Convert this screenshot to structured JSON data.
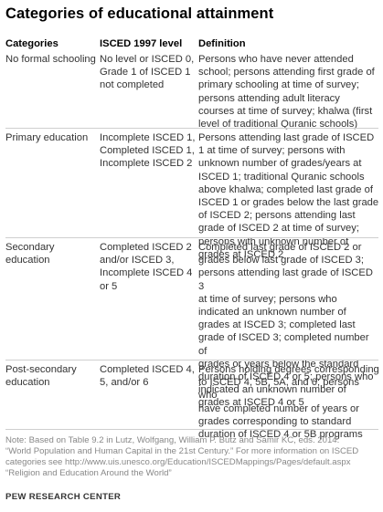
{
  "title": "Categories of educational attainment",
  "headers": {
    "category": "Categories",
    "isced": "ISCED 1997 level",
    "definition": "Definition"
  },
  "rows": [
    {
      "category": [
        "No formal schooling"
      ],
      "isced": [
        "No level or ISCED 0,",
        "Grade 1 of ISCED 1",
        "not completed"
      ],
      "definition": [
        "Persons who have never attended",
        "school; persons attending first grade of",
        "primary schooling at time of survey;",
        "persons attending adult literacy",
        "courses at time of survey; khalwa (first",
        "level of traditional Quranic schools)"
      ]
    },
    {
      "category": [
        "Primary education"
      ],
      "isced": [
        "Incomplete ISCED 1,",
        "Completed ISCED 1,",
        "Incomplete ISCED 2"
      ],
      "definition": [
        "Persons attending last grade of ISCED",
        "1 at time of survey; persons with",
        "unknown number of grades/years at",
        "ISCED 1; traditional Quranic schools",
        "above khalwa; completed last grade of",
        "ISCED 1 or grades below the last grade",
        "of ISCED 2; persons attending last",
        "grade of ISCED 2 at time of survey;",
        "persons with unknown number of",
        "grades at ISCED 2"
      ]
    },
    {
      "category": [
        "Secondary",
        "education"
      ],
      "isced": [
        "Completed ISCED 2",
        "and/or ISCED 3,",
        "Incomplete ISCED 4",
        "or 5"
      ],
      "definition": [
        "Completed last grade of ISCED 2 or",
        "grades below last grade of ISCED 3;",
        "persons attending last grade of ISCED 3",
        "at time of survey; persons who",
        "indicated an unknown number of",
        "grades at ISCED 3; completed last",
        "grade of ISCED 3; completed number of",
        "grades or years below the standard",
        "duration of ISCED 4 or 5; persons who",
        "indicated an unknown number of",
        "grades at ISCED 4 or 5"
      ]
    },
    {
      "category": [
        "Post-secondary",
        "education"
      ],
      "isced": [
        "Completed ISCED 4,",
        "5, and/or 6"
      ],
      "definition": [
        "Persons holding degrees corresponding",
        "to ISCED 4, 5B, 5A, and 6; persons who",
        "have completed number of years or",
        "grades corresponding to standard",
        "duration of ISCED 4 or 5B programs"
      ]
    }
  ],
  "note": [
    "Note: Based on Table 9.2 in Lutz, Wolfgang, William P. Butz and Samir KC, eds. 2014.",
    "“World Population and Human Capital in the 21st Century.” For more information on ISCED",
    "categories see http://www.uis.unesco.org/Education/ISCEDMappings/Pages/default.aspx",
    "“Religion and Education Around the World”"
  ],
  "source": "PEW RESEARCH CENTER"
}
